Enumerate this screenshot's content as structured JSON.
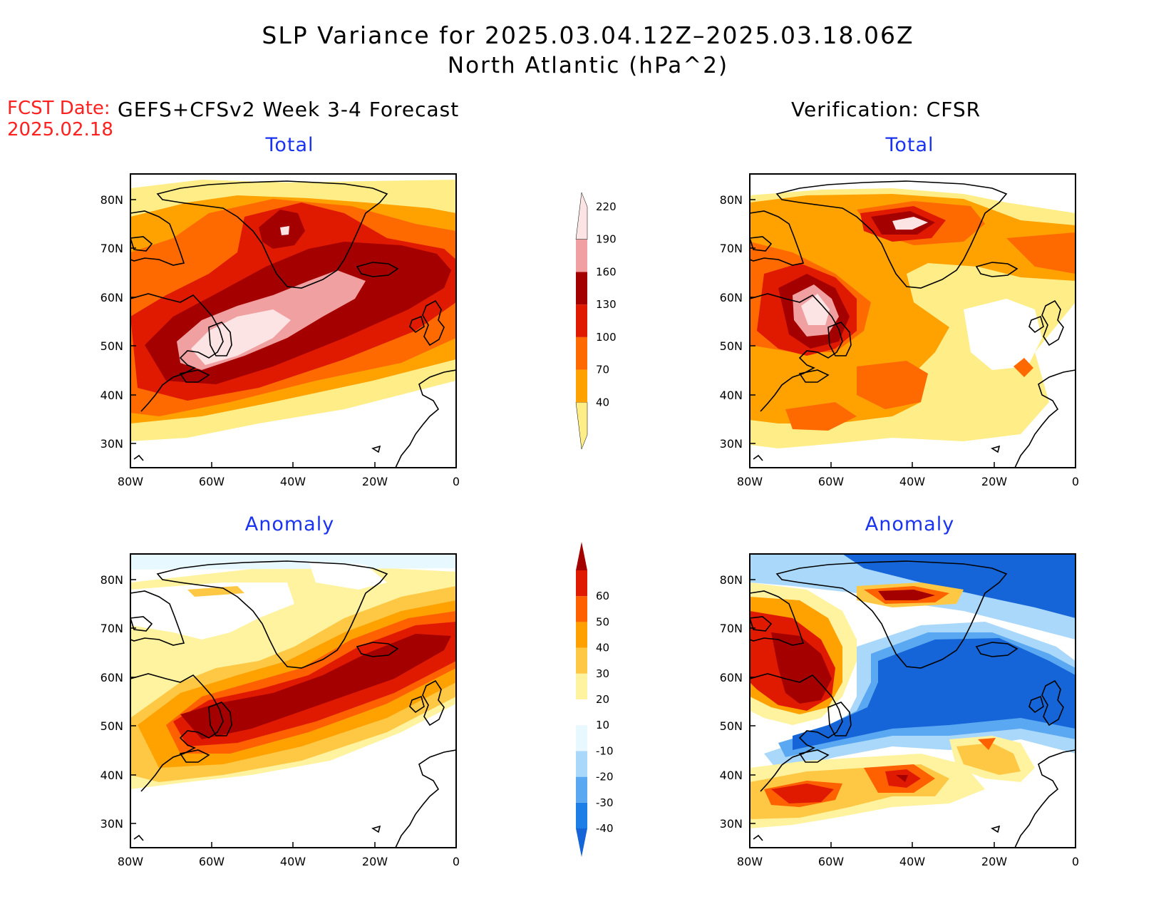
{
  "title_line1": "SLP Variance for 2025.03.04.12Z–2025.03.18.06Z",
  "title_line2": "North Atlantic (hPa^2)",
  "fcst_label": "FCST Date:",
  "fcst_date": "2025.02.18",
  "left_header": "GEFS+CFSv2 Week 3-4 Forecast",
  "right_header": "Verification: CFSR",
  "panels": {
    "fcst_total": {
      "title": "Total"
    },
    "verif_total": {
      "title": "Total"
    },
    "fcst_anom": {
      "title": "Anomaly"
    },
    "verif_anom": {
      "title": "Anomaly"
    }
  },
  "axes": {
    "lon_labels": [
      "80W",
      "60W",
      "40W",
      "20W",
      "0"
    ],
    "lat_labels": [
      "80N",
      "70N",
      "60N",
      "50N",
      "40N",
      "30N"
    ]
  },
  "colorbar_total": {
    "levels": [
      "40",
      "70",
      "100",
      "130",
      "160",
      "190",
      "220"
    ],
    "colors": [
      "#ffee88",
      "#ffa200",
      "#ff6a00",
      "#e01a00",
      "#a50000",
      "#f0a0a0",
      "#fde4e4"
    ]
  },
  "colorbar_anom": {
    "levels": [
      "-40",
      "-30",
      "-20",
      "-10",
      "10",
      "20",
      "30",
      "40",
      "50",
      "60"
    ],
    "colors": [
      "#1565d8",
      "#1e7ee8",
      "#5aa8f2",
      "#aad8fa",
      "#e8f8ff",
      "#ffffff",
      "#fff3a0",
      "#ffc844",
      "#ffa000",
      "#ff6000",
      "#e01a00",
      "#a50000"
    ]
  }
}
